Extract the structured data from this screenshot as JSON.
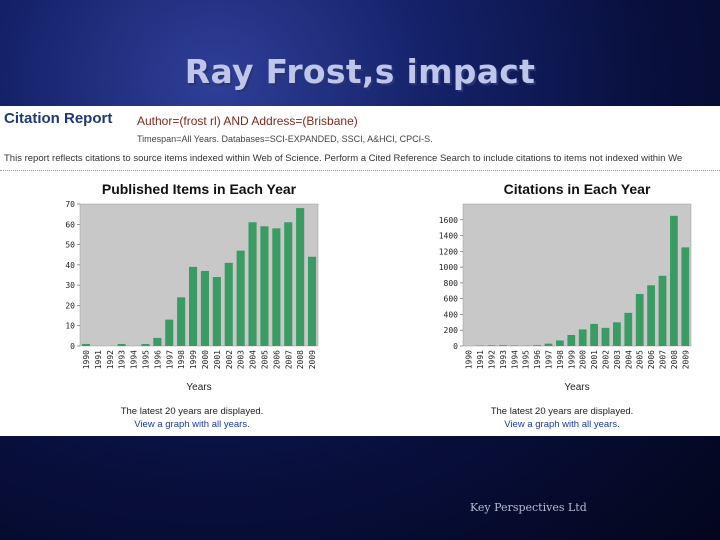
{
  "slide": {
    "title": "Ray Frost,s impact",
    "footer": "Key Perspectives Ltd"
  },
  "report": {
    "heading": "Citation Report",
    "query": "Author=(frost rl) AND Address=(Brisbane)",
    "timespan": "Timespan=All Years. Databases=SCI-EXPANDED, SSCI, A&HCI, CPCI-S.",
    "note": "This report reflects citations to source items indexed within Web of Science. Perform a Cited Reference Search to include citations to items not indexed within We"
  },
  "colors": {
    "bar": "#3c9a64",
    "plot_bg": "#c8c8c8",
    "link": "#1a3c9e"
  },
  "chart_data": [
    {
      "type": "bar",
      "title": "Published Items in Each Year",
      "xlabel": "Years",
      "ylabel": "",
      "ylim": [
        0,
        70
      ],
      "yticks": [
        0,
        10,
        20,
        30,
        40,
        50,
        60,
        70
      ],
      "grid": false,
      "categories": [
        "1990",
        "1991",
        "1992",
        "1993",
        "1994",
        "1995",
        "1996",
        "1997",
        "1998",
        "1999",
        "2000",
        "2001",
        "2002",
        "2003",
        "2004",
        "2005",
        "2006",
        "2007",
        "2008",
        "2009"
      ],
      "values": [
        1,
        0,
        0,
        1,
        0,
        1,
        4,
        13,
        24,
        39,
        37,
        34,
        41,
        47,
        61,
        59,
        58,
        61,
        68,
        44
      ],
      "caption": "The latest 20 years are displayed.",
      "link": "View a graph with all years."
    },
    {
      "type": "bar",
      "title": "Citations in Each Year",
      "xlabel": "Years",
      "ylabel": "",
      "ylim": [
        0,
        1800
      ],
      "yticks": [
        0,
        200,
        400,
        600,
        800,
        1000,
        1200,
        1400,
        1600
      ],
      "grid": false,
      "categories": [
        "1990",
        "1991",
        "1992",
        "1993",
        "1994",
        "1995",
        "1996",
        "1997",
        "1998",
        "1999",
        "2000",
        "2001",
        "2002",
        "2003",
        "2004",
        "2005",
        "2006",
        "2007",
        "2008",
        "2009"
      ],
      "values": [
        0,
        5,
        8,
        10,
        6,
        3,
        10,
        30,
        70,
        140,
        210,
        280,
        230,
        300,
        420,
        660,
        770,
        890,
        1650,
        1250
      ],
      "caption": "The latest 20 years are displayed.",
      "link": "View a graph with all years."
    }
  ]
}
